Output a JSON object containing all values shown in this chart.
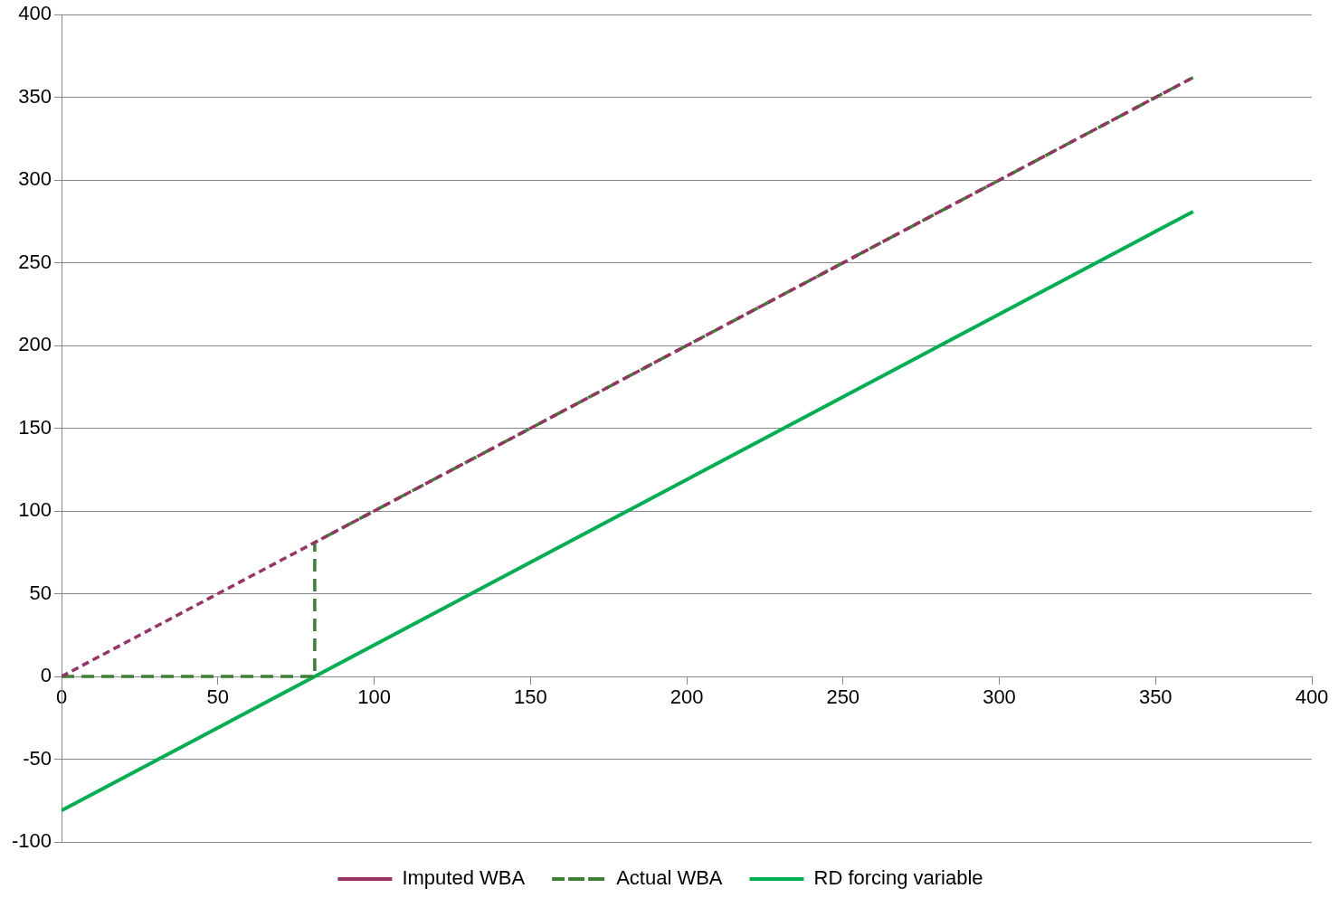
{
  "chart_data": {
    "type": "line",
    "xlim": [
      0,
      400
    ],
    "xticks": [
      0,
      50,
      100,
      150,
      200,
      250,
      300,
      350,
      400
    ],
    "ylim": [
      -100,
      400
    ],
    "yticks": [
      -100,
      -50,
      0,
      50,
      100,
      150,
      200,
      250,
      300,
      350,
      400
    ],
    "grid": "y",
    "legend": "bottom",
    "marker": "none",
    "series": [
      {
        "name": "Imputed WBA",
        "color": "#993366",
        "line_style": "dotted",
        "x": [
          0,
          362
        ],
        "values": [
          0,
          362
        ]
      },
      {
        "name": "Actual WBA",
        "color": "#3d7f35",
        "line_style": "dashed",
        "x": [
          0,
          81,
          81,
          362
        ],
        "values": [
          0,
          0,
          81,
          362
        ]
      },
      {
        "name": "RD forcing variable",
        "color": "#00b050",
        "line_style": "solid",
        "x": [
          0,
          362
        ],
        "values": [
          -81,
          281
        ]
      }
    ]
  }
}
